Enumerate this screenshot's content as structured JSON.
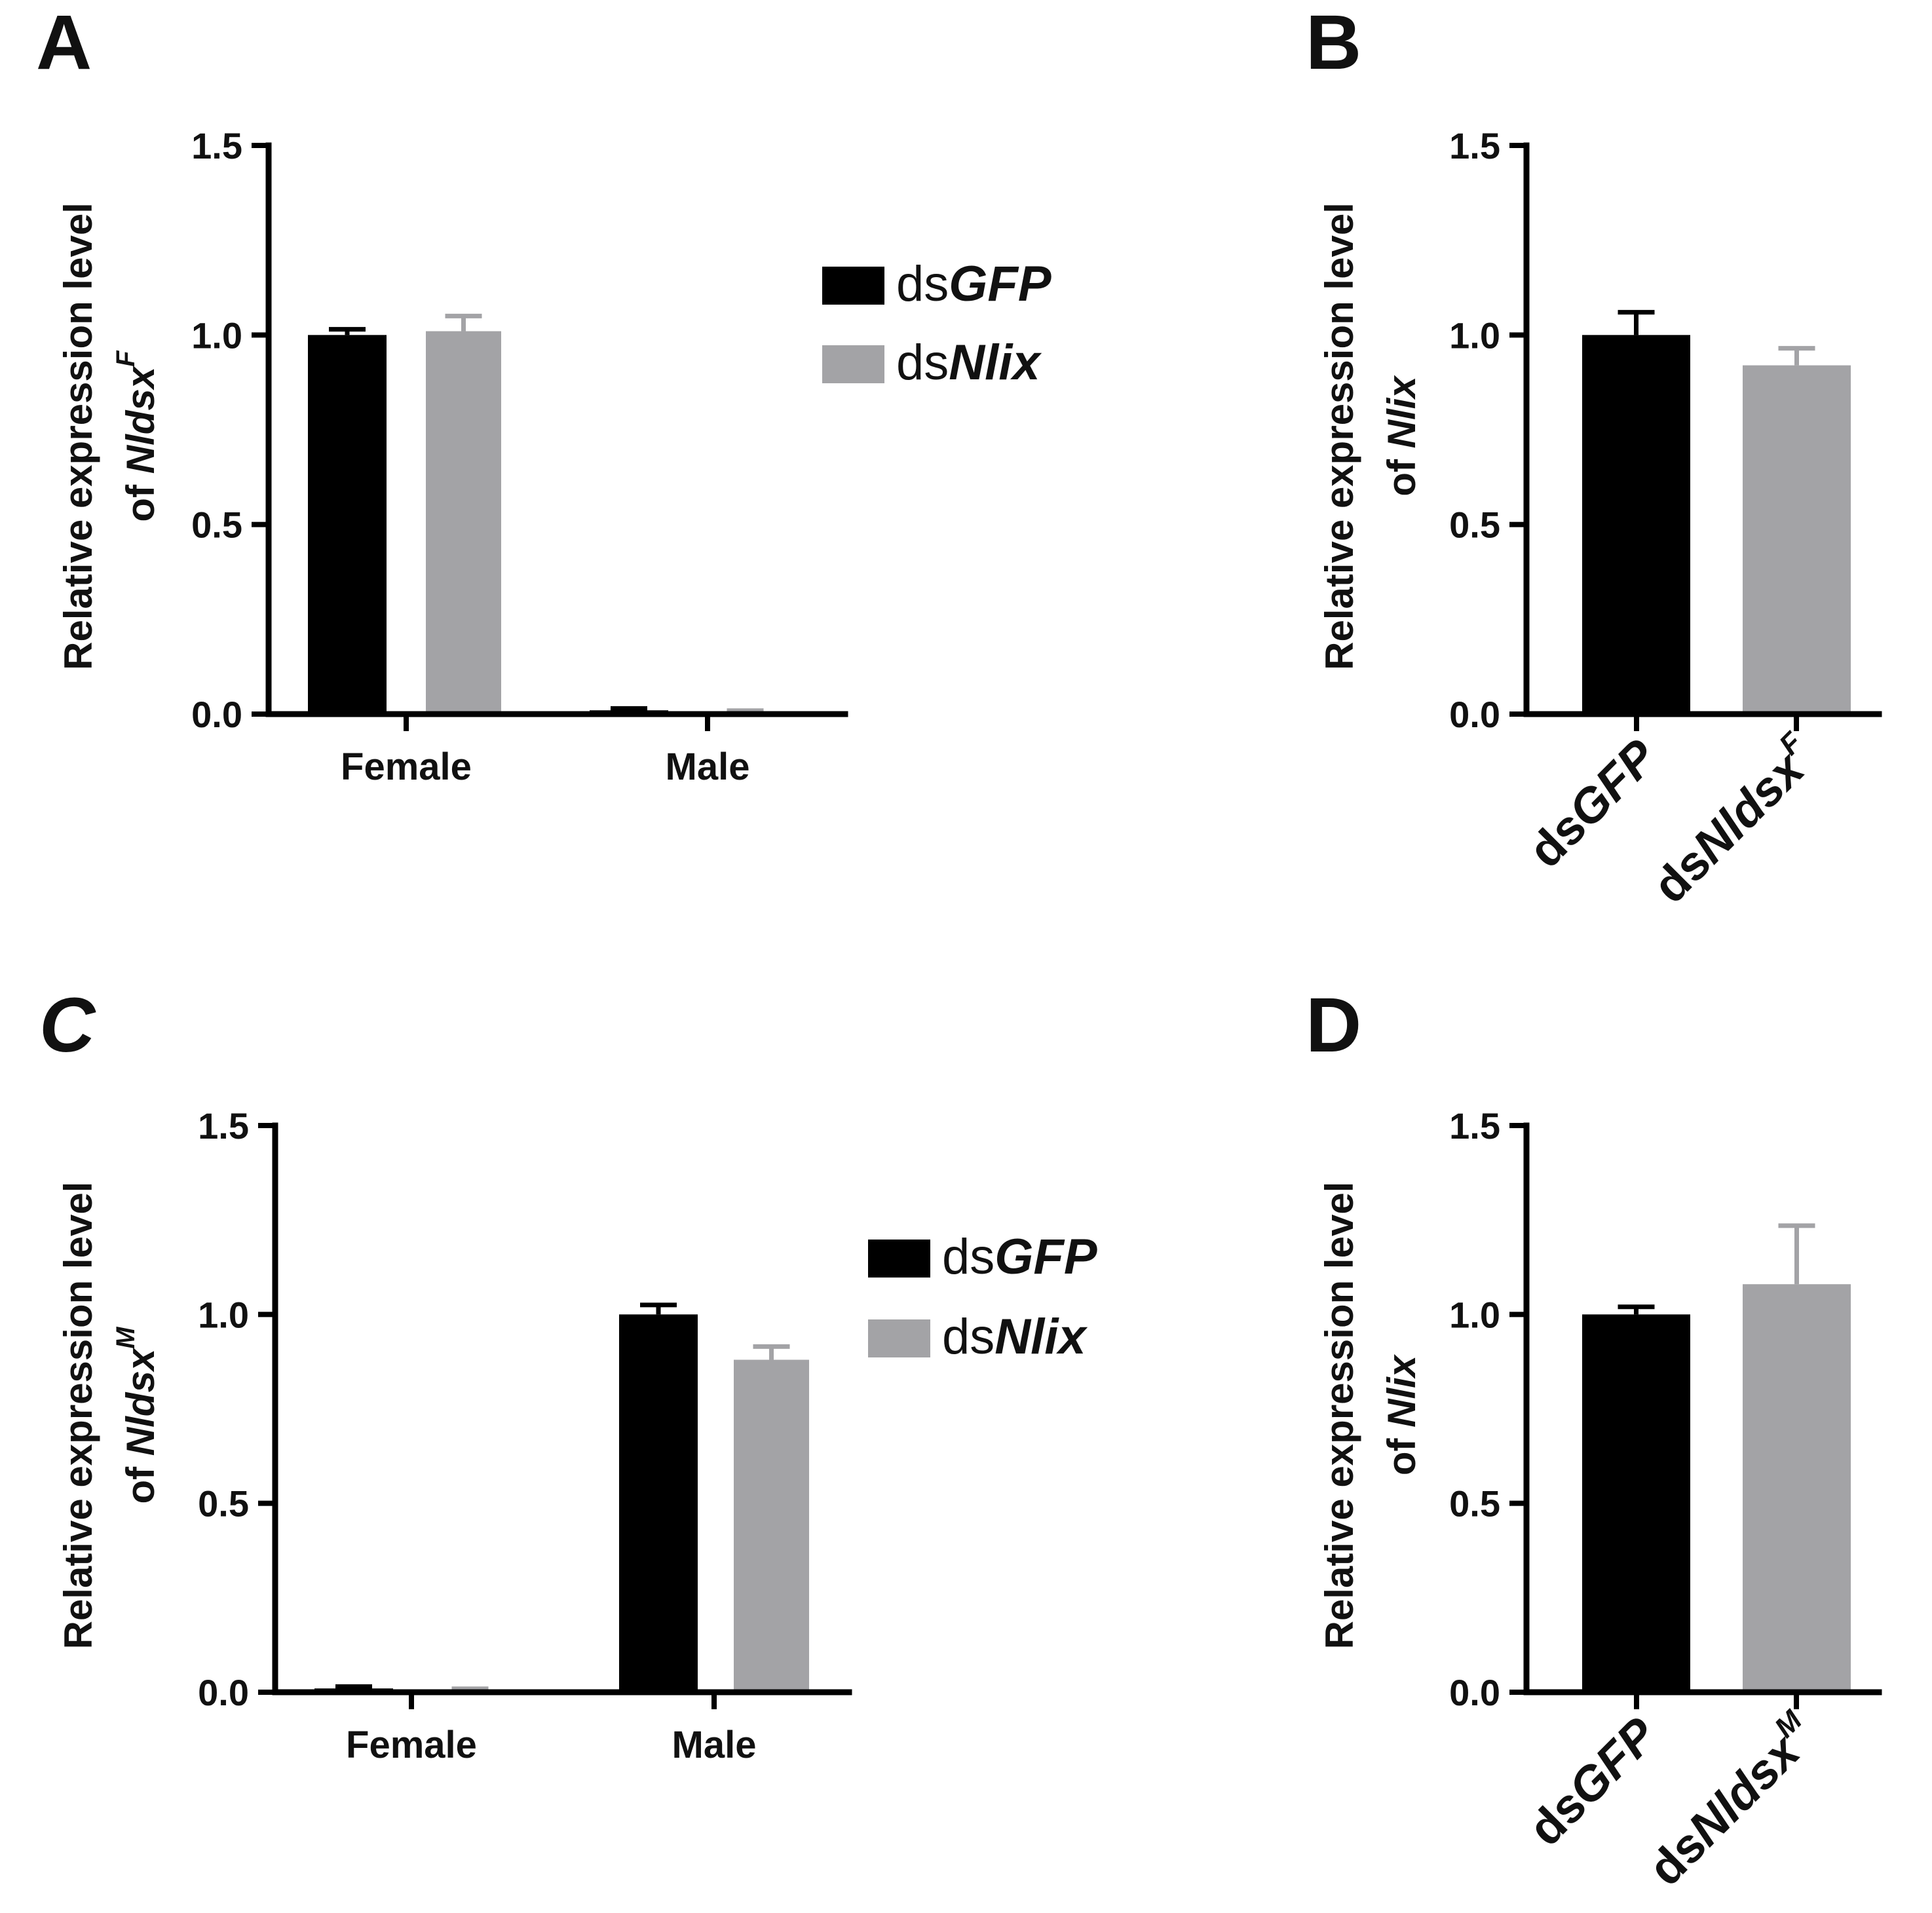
{
  "colors": {
    "dsGFP": "#000000",
    "dsNlix": "#a3a3a6",
    "axis": "#000000"
  },
  "chart_data": [
    {
      "panel": "A",
      "type": "bar",
      "categories": [
        "Female",
        "Male"
      ],
      "series": [
        {
          "name": "dsGFP",
          "values": [
            1.0,
            0.01
          ],
          "errors": [
            0.015,
            0.005
          ]
        },
        {
          "name": "dsNlix",
          "values": [
            1.01,
            0.005
          ],
          "errors": [
            0.04,
            0.004
          ]
        }
      ],
      "ylabel_line1": "Relative expression level",
      "ylabel_line2_prefix": "of ",
      "ylabel_gene": "Nldsx",
      "ylabel_sup": "F",
      "yticks": [
        "0.0",
        "0.5",
        "1.0",
        "1.5"
      ],
      "ylim": [
        0,
        1.5
      ],
      "legend": [
        {
          "prefix": "ds",
          "italic": "GFP"
        },
        {
          "prefix": "ds",
          "italic": "Nlix"
        }
      ]
    },
    {
      "panel": "B",
      "type": "bar",
      "categories": [
        {
          "prefix": "ds",
          "italic": "GFP",
          "sup": ""
        },
        {
          "prefix": "ds",
          "italic": "Nldsx",
          "sup": "F"
        }
      ],
      "series": [
        {
          "name": "group",
          "values": [
            1.0,
            0.92
          ],
          "errors": [
            0.06,
            0.045
          ]
        }
      ],
      "ylabel_line1": "Relative expression level",
      "ylabel_line2_prefix": "of ",
      "ylabel_gene": "Nlix",
      "ylabel_sup": "",
      "yticks": [
        "0.0",
        "0.5",
        "1.0",
        "1.5"
      ],
      "ylim": [
        0,
        1.5
      ]
    },
    {
      "panel": "C",
      "type": "bar",
      "categories": [
        "Female",
        "Male"
      ],
      "series": [
        {
          "name": "dsGFP",
          "values": [
            0.01,
            1.0
          ],
          "errors": [
            0.005,
            0.025
          ]
        },
        {
          "name": "dsNlix",
          "values": [
            0.005,
            0.88
          ],
          "errors": [
            0.004,
            0.035
          ]
        }
      ],
      "ylabel_line1": "Relative expression level",
      "ylabel_line2_prefix": "of ",
      "ylabel_gene": "Nldsx",
      "ylabel_sup": "M",
      "yticks": [
        "0.0",
        "0.5",
        "1.0",
        "1.5"
      ],
      "ylim": [
        0,
        1.5
      ],
      "legend": [
        {
          "prefix": "ds",
          "italic": "GFP"
        },
        {
          "prefix": "ds",
          "italic": "Nlix"
        }
      ]
    },
    {
      "panel": "D",
      "type": "bar",
      "categories": [
        {
          "prefix": "ds",
          "italic": "GFP",
          "sup": ""
        },
        {
          "prefix": "ds",
          "italic": "Nldsx",
          "sup": "M"
        }
      ],
      "series": [
        {
          "name": "group",
          "values": [
            1.0,
            1.08
          ],
          "errors": [
            0.02,
            0.155
          ]
        }
      ],
      "ylabel_line1": "Relative expression level",
      "ylabel_line2_prefix": "of ",
      "ylabel_gene": "Nlix",
      "ylabel_sup": "",
      "yticks": [
        "0.0",
        "0.5",
        "1.0",
        "1.5"
      ],
      "ylim": [
        0,
        1.5
      ]
    }
  ]
}
